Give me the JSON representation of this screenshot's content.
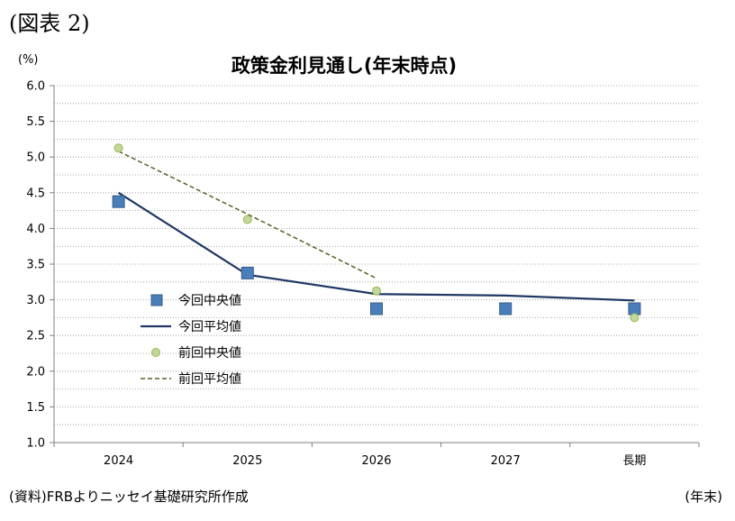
{
  "figure_label": "(図表 2)",
  "source_note": "(資料)FRBよりニッセイ基礎研究所作成",
  "unit_note": "(年末)",
  "chart_data": {
    "type": "line",
    "title": "政策金利見通し(年末時点)",
    "ylabel": "(%)",
    "xlabel": "",
    "categories": [
      "2024",
      "2025",
      "2026",
      "2027",
      "長期"
    ],
    "ylim": [
      1.0,
      6.0
    ],
    "y_ticks": [
      "6.0",
      "5.5",
      "5.0",
      "4.5",
      "4.0",
      "3.5",
      "3.0",
      "2.5",
      "2.0",
      "1.5",
      "1.0"
    ],
    "grid": true,
    "legend_placement": "middle-left",
    "series": [
      {
        "name": "今回中央値",
        "kind": "marker-square",
        "color": "#4a7ebb",
        "values": [
          4.375,
          3.375,
          2.875,
          2.875,
          2.875
        ]
      },
      {
        "name": "今回平均値",
        "kind": "line-solid",
        "color": "#1f3864",
        "values": [
          4.5,
          3.35,
          3.08,
          3.06,
          2.99
        ]
      },
      {
        "name": "前回中央値",
        "kind": "marker-circle",
        "color": "#c3d69b",
        "values": [
          5.125,
          4.125,
          3.125,
          null,
          2.75
        ]
      },
      {
        "name": "前回平均値",
        "kind": "line-dashed",
        "color": "#4f6228",
        "values": [
          5.08,
          4.2,
          3.3,
          null,
          null
        ]
      }
    ]
  }
}
